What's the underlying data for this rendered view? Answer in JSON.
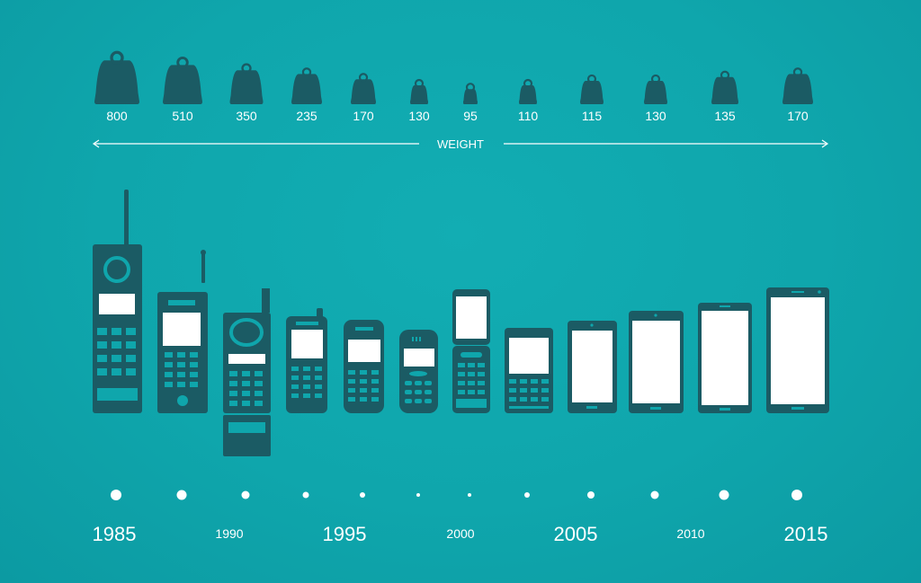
{
  "colors": {
    "background": "#11a9af",
    "shape": "#1b5b64",
    "screen": "#ffffff",
    "text": "#ffffff"
  },
  "axis_label": "WEIGHT",
  "weights": [
    "800",
    "510",
    "350",
    "235",
    "170",
    "130",
    "95",
    "110",
    "115",
    "130",
    "135",
    "170"
  ],
  "years": [
    {
      "label": "1985",
      "size": "big"
    },
    {
      "label": "1990",
      "size": "small"
    },
    {
      "label": "1995",
      "size": "big"
    },
    {
      "label": "2000",
      "size": "small"
    },
    {
      "label": "2005",
      "size": "big"
    },
    {
      "label": "2010",
      "size": "small"
    },
    {
      "label": "2015",
      "size": "big"
    }
  ],
  "phones": [
    "brick-antenna-phone",
    "bar-antenna-phone",
    "flip-antenna-phone",
    "candybar-stub-phone",
    "compact-phone",
    "rounded-phone",
    "slider-phone",
    "small-bar-phone",
    "smartphone",
    "smartphone",
    "smartphone",
    "smartphone"
  ],
  "timeline_dots": 12
}
